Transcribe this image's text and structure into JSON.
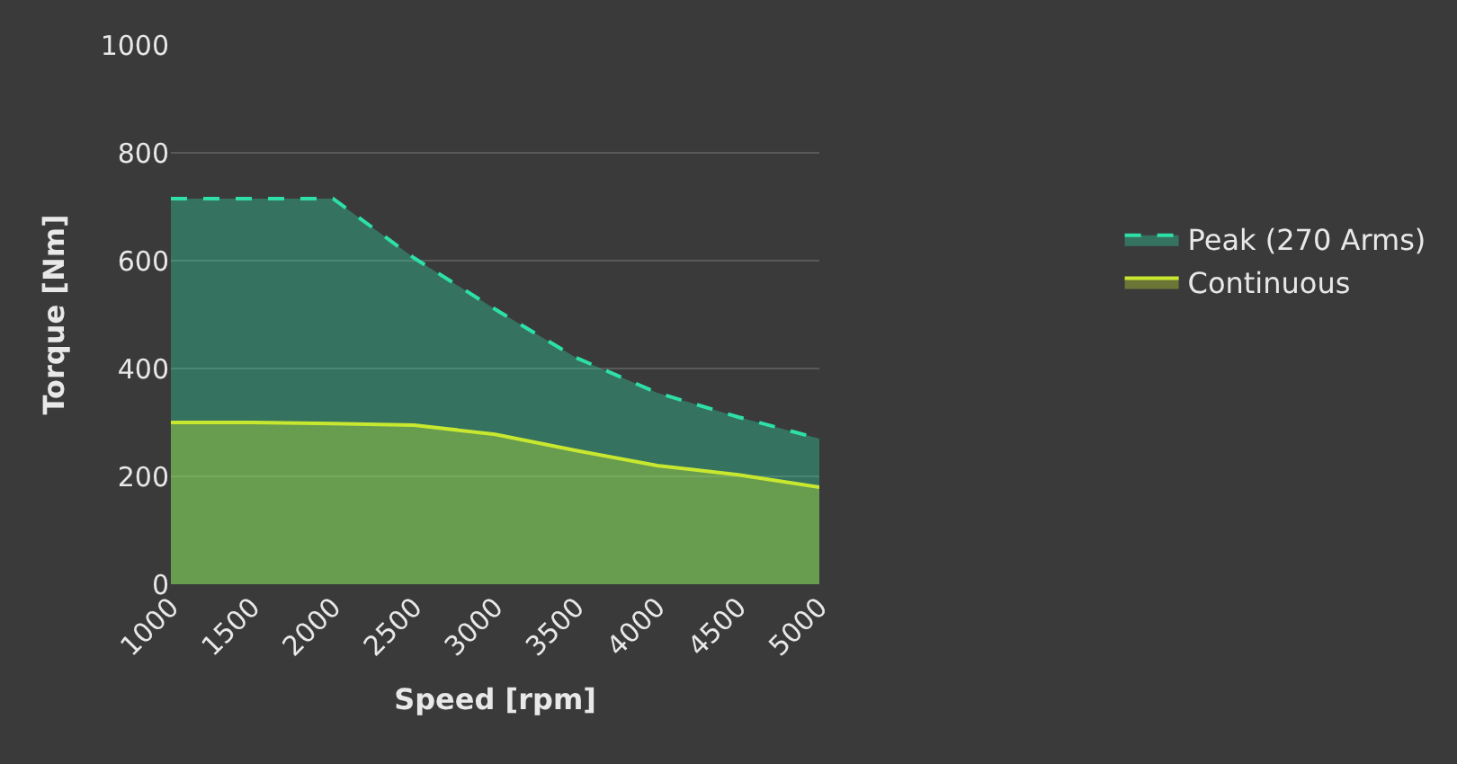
{
  "chart_data": {
    "type": "area",
    "xlabel": "Speed [rpm]",
    "ylabel": "Torque [Nm]",
    "x": [
      1000,
      1500,
      2000,
      2500,
      3000,
      3500,
      4000,
      4500,
      5000
    ],
    "series": [
      {
        "name": "Peak (270 Arms)",
        "color": "#2ee0a8",
        "line_style": "dashed",
        "values": [
          715,
          715,
          715,
          605,
          510,
          420,
          355,
          310,
          270
        ]
      },
      {
        "name": "Continuous",
        "color": "#c8e830",
        "line_style": "solid",
        "values": [
          300,
          300,
          298,
          295,
          278,
          248,
          220,
          203,
          180
        ]
      }
    ],
    "xlim": [
      1000,
      5000
    ],
    "xticks": [
      1000,
      1500,
      2000,
      2500,
      3000,
      3500,
      4000,
      4500,
      5000
    ],
    "ylim": [
      0,
      1000
    ],
    "yticks": [
      0,
      200,
      400,
      600,
      800,
      1000
    ],
    "grid": "y",
    "legend": "right",
    "marker": "none"
  }
}
